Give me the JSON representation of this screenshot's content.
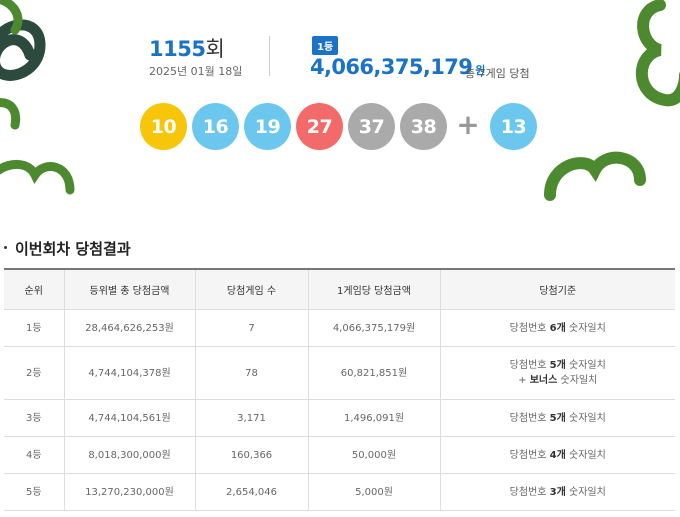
{
  "header": {
    "round_number": "1155",
    "round_suffix": "회",
    "draw_date": "2025년 01월 18일",
    "rank_badge": "1등",
    "first_prize_amount": "4,066,375,179",
    "first_prize_unit": "원",
    "winner_games": "총 7게임 당첨"
  },
  "winning_numbers": {
    "numbers": [
      {
        "value": "10",
        "color": "#f7c60a"
      },
      {
        "value": "16",
        "color": "#6cc7ee"
      },
      {
        "value": "19",
        "color": "#6cc7ee"
      },
      {
        "value": "27",
        "color": "#f36a6a"
      },
      {
        "value": "37",
        "color": "#aaaaaa"
      },
      {
        "value": "38",
        "color": "#aaaaaa"
      }
    ],
    "plus_sign": "+",
    "bonus": {
      "value": "13",
      "color": "#6cc7ee"
    }
  },
  "section": {
    "title": "이번회차 당첨결과"
  },
  "table": {
    "headers": [
      "순위",
      "등위별 총 당첨금액",
      "당첨게임 수",
      "1게임당 당첨금액",
      "당첨기준"
    ],
    "rows": [
      {
        "rank": "1등",
        "total": "28,464,626,253원",
        "games": "7",
        "per_game": "4,066,375,179원",
        "crit_pre": "당첨번호 ",
        "crit_bold": "6개",
        "crit_post": " 숫자일치",
        "crit2_pre": "",
        "crit2_bold": "",
        "crit2_post": ""
      },
      {
        "rank": "2등",
        "total": "4,744,104,378원",
        "games": "78",
        "per_game": "60,821,851원",
        "crit_pre": "당첨번호 ",
        "crit_bold": "5개",
        "crit_post": " 숫자일치",
        "crit2_pre": "+ ",
        "crit2_bold": "보너스",
        "crit2_post": " 숫자일치"
      },
      {
        "rank": "3등",
        "total": "4,744,104,561원",
        "games": "3,171",
        "per_game": "1,496,091원",
        "crit_pre": "당첨번호 ",
        "crit_bold": "5개",
        "crit_post": " 숫자일치",
        "crit2_pre": "",
        "crit2_bold": "",
        "crit2_post": ""
      },
      {
        "rank": "4등",
        "total": "8,018,300,000원",
        "games": "160,366",
        "per_game": "50,000원",
        "crit_pre": "당첨번호 ",
        "crit_bold": "4개",
        "crit_post": " 숫자일치",
        "crit2_pre": "",
        "crit2_bold": "",
        "crit2_post": ""
      },
      {
        "rank": "5등",
        "total": "13,270,230,000원",
        "games": "2,654,046",
        "per_game": "5,000원",
        "crit_pre": "당첨번호 ",
        "crit_bold": "3개",
        "crit_post": " 숫자일치",
        "crit2_pre": "",
        "crit2_bold": "",
        "crit2_post": ""
      }
    ]
  },
  "colors": {
    "accent_blue": "#1a73c7",
    "deco_green": "#4d8a2f",
    "deco_dark_green": "#2d4a3e"
  }
}
